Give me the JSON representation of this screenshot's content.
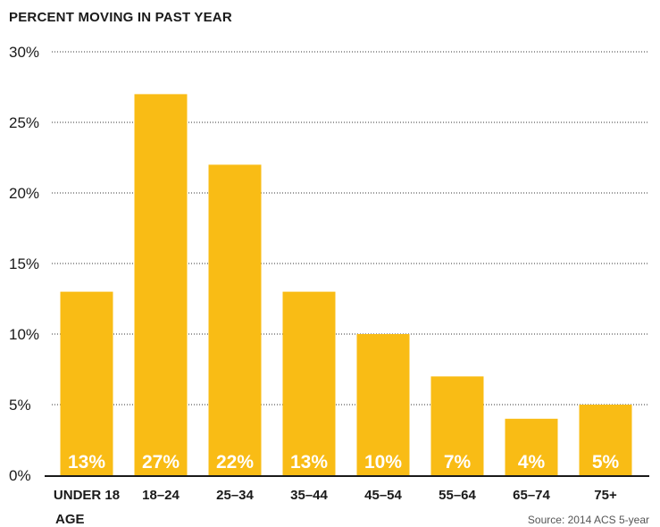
{
  "chart_data": {
    "type": "bar",
    "title": "PERCENT MOVING IN PAST YEAR",
    "xlabel": "AGE",
    "ylabel": "",
    "categories": [
      "UNDER 18",
      "18–24",
      "25–34",
      "35–44",
      "45–54",
      "55–64",
      "65–74",
      "75+"
    ],
    "values": [
      13,
      27,
      22,
      13,
      10,
      7,
      4,
      5
    ],
    "data_labels": [
      "13%",
      "27%",
      "22%",
      "13%",
      "10%",
      "7%",
      "4%",
      "5%"
    ],
    "yticks": [
      0,
      5,
      10,
      15,
      20,
      25,
      30
    ],
    "ytick_labels": [
      "0%",
      "5%",
      "10%",
      "15%",
      "20%",
      "25%",
      "30%"
    ],
    "ylim": [
      0,
      30
    ],
    "grid": true,
    "source": "Source: 2014 ACS 5-year",
    "colors": {
      "bar": "#F9BC15",
      "bar_label": "#ffffff",
      "text": "#1a1a1a",
      "grid": "#333333"
    }
  }
}
